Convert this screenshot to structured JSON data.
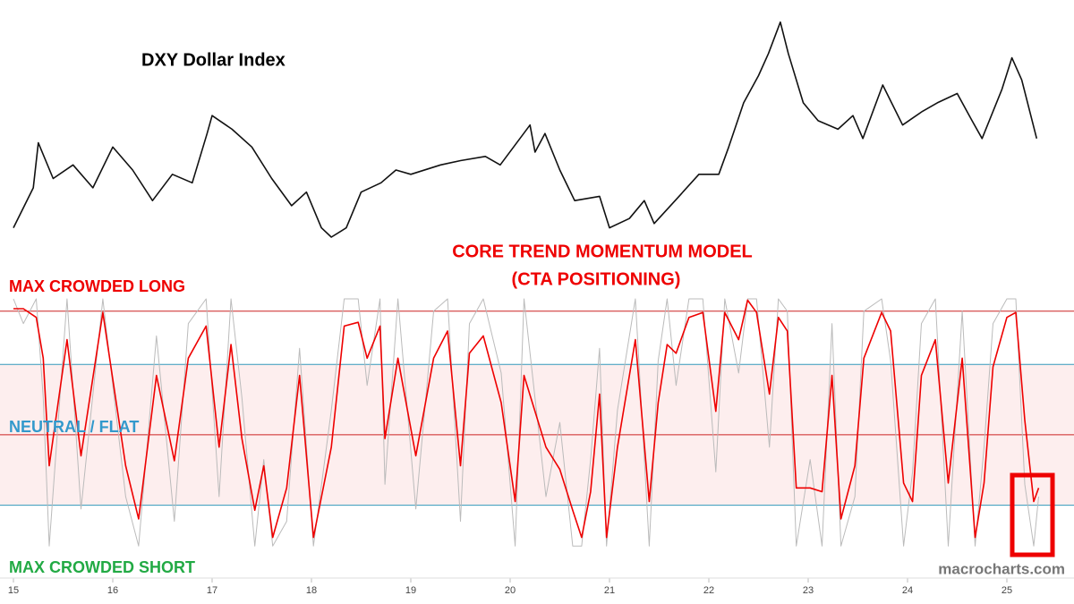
{
  "chart_data": [
    {
      "type": "line",
      "title": "DXY Dollar Index",
      "x": [
        15.0,
        15.2,
        15.25,
        15.4,
        15.6,
        15.8,
        16.0,
        16.2,
        16.4,
        16.6,
        16.8,
        16.95,
        17.0,
        17.2,
        17.4,
        17.6,
        17.8,
        17.95,
        18.1,
        18.2,
        18.35,
        18.5,
        18.7,
        18.85,
        19.0,
        19.3,
        19.5,
        19.75,
        19.9,
        20.2,
        20.25,
        20.35,
        20.5,
        20.65,
        20.9,
        21.0,
        21.2,
        21.35,
        21.45,
        21.7,
        21.9,
        22.1,
        22.2,
        22.35,
        22.5,
        22.6,
        22.72,
        22.8,
        22.95,
        23.1,
        23.3,
        23.45,
        23.55,
        23.75,
        23.95,
        24.15,
        24.3,
        24.5,
        24.65,
        24.75,
        24.95,
        25.05,
        25.15,
        25.3
      ],
      "series": [
        {
          "color": "#111111",
          "values": [
            90.0,
            94.7,
            100.0,
            95.8,
            97.4,
            94.7,
            99.5,
            96.8,
            93.2,
            96.3,
            95.3,
            101.1,
            103.2,
            101.6,
            99.5,
            95.8,
            92.6,
            94.2,
            90.0,
            88.9,
            90.0,
            94.2,
            95.3,
            96.8,
            96.3,
            97.4,
            97.9,
            98.4,
            97.4,
            102.1,
            98.9,
            101.1,
            96.8,
            93.2,
            93.7,
            90.0,
            91.1,
            93.2,
            90.5,
            93.7,
            96.3,
            96.3,
            99.5,
            104.7,
            107.9,
            110.5,
            114.2,
            110.5,
            104.7,
            102.6,
            101.6,
            103.2,
            100.5,
            106.8,
            102.1,
            103.7,
            104.7,
            105.8,
            102.6,
            100.5,
            106.3,
            110.0,
            107.4,
            100.5
          ]
        }
      ],
      "xlim": [
        15,
        25.68
      ],
      "ylim": [
        86.8,
        116.8
      ]
    },
    {
      "type": "line",
      "title": "CORE TREND MOMENTUM MODEL",
      "subtitle": "(CTA POSITIONING)",
      "annotations": [
        "MAX CROWDED LONG",
        "NEUTRAL / FLAT",
        "MAX CROWDED SHORT"
      ],
      "x": [
        15.0,
        15.1,
        15.23,
        15.3,
        15.36,
        15.54,
        15.68,
        15.9,
        16.13,
        16.26,
        16.44,
        16.62,
        16.76,
        16.94,
        17.07,
        17.19,
        17.3,
        17.43,
        17.52,
        17.61,
        17.75,
        17.88,
        18.02,
        18.2,
        18.33,
        18.47,
        18.56,
        18.69,
        18.74,
        18.87,
        19.05,
        19.23,
        19.37,
        19.5,
        19.59,
        19.73,
        19.91,
        20.05,
        20.14,
        20.36,
        20.5,
        20.63,
        20.72,
        20.81,
        20.9,
        20.97,
        21.08,
        21.26,
        21.4,
        21.49,
        21.58,
        21.67,
        21.8,
        21.94,
        22.07,
        22.16,
        22.3,
        22.39,
        22.48,
        22.61,
        22.7,
        22.79,
        22.88,
        23.02,
        23.14,
        23.24,
        23.33,
        23.47,
        23.56,
        23.74,
        23.83,
        23.96,
        24.05,
        24.14,
        24.28,
        24.41,
        24.55,
        24.68,
        24.77,
        24.86,
        25.0,
        25.09,
        25.18,
        25.27,
        25.32
      ],
      "series": [
        {
          "color": "#bbbbbb",
          "values": [
            1.1,
            0.9,
            1.1,
            0.3,
            -0.9,
            1.1,
            -0.6,
            1.1,
            -0.5,
            -0.9,
            0.8,
            -0.7,
            0.9,
            1.1,
            -0.5,
            1.1,
            0.3,
            -0.9,
            -0.2,
            -0.9,
            -0.7,
            0.7,
            -0.9,
            0.2,
            1.1,
            1.1,
            0.4,
            1.1,
            -0.4,
            1.1,
            -0.6,
            1.0,
            1.1,
            -0.7,
            0.9,
            1.1,
            0.5,
            -0.9,
            1.1,
            -0.5,
            0.1,
            -0.9,
            -0.9,
            -0.2,
            0.7,
            -0.9,
            0.2,
            1.1,
            -0.9,
            0.6,
            1.1,
            0.4,
            1.1,
            1.1,
            -0.3,
            1.1,
            0.5,
            1.1,
            1.1,
            -0.1,
            1.1,
            1.0,
            -0.9,
            -0.2,
            -0.9,
            0.9,
            -0.9,
            -0.5,
            1.0,
            1.1,
            0.6,
            -0.9,
            -0.3,
            0.9,
            1.1,
            -0.9,
            1.0,
            -0.9,
            -0.1,
            0.9,
            1.1,
            1.1,
            -0.4,
            -0.9,
            -0.5
          ]
        },
        {
          "color": "#ee0000",
          "values": [
            1.02,
            1.02,
            0.95,
            0.62,
            -0.25,
            0.77,
            -0.17,
            0.99,
            -0.25,
            -0.68,
            0.48,
            -0.21,
            0.62,
            0.88,
            -0.1,
            0.73,
            -0.03,
            -0.61,
            -0.25,
            -0.83,
            -0.43,
            0.48,
            -0.83,
            -0.1,
            0.88,
            0.91,
            0.62,
            0.88,
            -0.03,
            0.62,
            -0.17,
            0.62,
            0.84,
            -0.25,
            0.66,
            0.8,
            0.26,
            -0.54,
            0.48,
            -0.1,
            -0.28,
            -0.61,
            -0.83,
            -0.46,
            0.33,
            -0.83,
            -0.1,
            0.77,
            -0.54,
            0.26,
            0.73,
            0.66,
            0.95,
            0.99,
            0.19,
            0.99,
            0.77,
            1.09,
            0.99,
            0.33,
            0.95,
            0.84,
            -0.43,
            -0.43,
            -0.46,
            0.48,
            -0.68,
            -0.25,
            0.62,
            0.99,
            0.84,
            -0.39,
            -0.54,
            0.48,
            0.77,
            -0.39,
            0.62,
            -0.83,
            -0.39,
            0.55,
            0.95,
            0.99,
            0.12,
            -0.54,
            -0.43
          ]
        }
      ],
      "levels": [
        {
          "value": 1,
          "color": "#cc2222"
        },
        {
          "value": 0.57,
          "color": "#3399bb"
        },
        {
          "value": 0,
          "color": "#cc2222"
        },
        {
          "value": -0.57,
          "color": "#3399bb"
        }
      ],
      "band": [
        -0.57,
        0.57
      ],
      "band_color": "#fdeeee",
      "xlim": [
        15,
        25.68
      ],
      "ylim": [
        -0.92,
        1.1
      ],
      "xticks": [
        15,
        16,
        17,
        18,
        19,
        20,
        21,
        22,
        23,
        24,
        25
      ]
    }
  ],
  "source": "macrocharts.com"
}
